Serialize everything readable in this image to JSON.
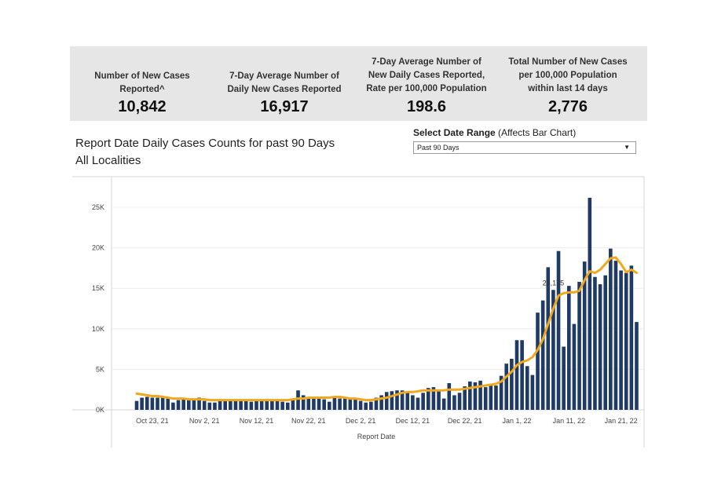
{
  "kpis": [
    {
      "label_lines": [
        "Number of New Cases",
        "Reported^"
      ],
      "value": "10,842"
    },
    {
      "label_lines": [
        "7-Day Average Number of",
        "Daily New Cases Reported"
      ],
      "value": "16,917"
    },
    {
      "label_lines": [
        "7-Day Average Number of",
        "New Daily Cases Reported,",
        "Rate per 100,000 Population"
      ],
      "value": "198.6"
    },
    {
      "label_lines": [
        "Total Number of New Cases",
        "per 100,000 Population",
        "within last 14 days"
      ],
      "value": "2,776"
    }
  ],
  "chart_header": {
    "title_line1": "Report Date Daily Cases Counts for past 90 Days",
    "title_line2": "All Localities"
  },
  "date_range": {
    "label_bold": "Select Date Range",
    "label_rest": " (Affects Bar Chart)",
    "selected": "Past 90 Days"
  },
  "colors": {
    "bar": "#1f3a64",
    "line": "#f0a81e",
    "grid": "#ececec",
    "panel_bg": "#e6e6e6"
  },
  "chart_data": {
    "type": "bar",
    "xlabel": "Report Date",
    "ylabel": "",
    "ylim": [
      0,
      27000
    ],
    "y_ticks": [
      0,
      5000,
      10000,
      15000,
      20000,
      25000
    ],
    "y_tick_labels": [
      "0K",
      "5K",
      "10K",
      "15K",
      "20K",
      "25K"
    ],
    "x_tick_labels": [
      "Oct 23, 21",
      "Nov 2, 21",
      "Nov 12, 21",
      "Nov 22, 21",
      "Dec 2, 21",
      "Dec 12, 21",
      "Dec 22, 21",
      "Jan 1, 22",
      "Jan 11, 22",
      "Jan 21, 22"
    ],
    "annotation": {
      "label": "26,175",
      "index": 80
    },
    "series": [
      {
        "type": "bar",
        "values": [
          1100,
          1500,
          1600,
          1500,
          1500,
          1500,
          1400,
          900,
          1200,
          1500,
          1300,
          1400,
          1500,
          1100,
          900,
          900,
          1200,
          1200,
          1200,
          1100,
          1200,
          1100,
          1000,
          1200,
          1300,
          1200,
          1300,
          1100,
          1000,
          900,
          1400,
          2400,
          1800,
          1500,
          1400,
          1500,
          1300,
          1000,
          1600,
          1400,
          1500,
          1400,
          1300,
          1100,
          900,
          1000,
          1500,
          1800,
          2200,
          2300,
          2400,
          2400,
          2100,
          1800,
          1500,
          2100,
          2700,
          2800,
          2400,
          1400,
          3300,
          1800,
          2100,
          2900,
          3500,
          3400,
          3600,
          2800,
          3100,
          3000,
          4200,
          5700,
          6300,
          8600,
          8600,
          5400,
          4300,
          12000,
          13500,
          17600,
          14800,
          19600,
          7800,
          15300,
          10600,
          15800,
          18300,
          26175,
          16400,
          15500,
          16600,
          19900,
          18400,
          17200,
          16900,
          17800,
          10842
        ]
      },
      {
        "type": "line",
        "values": [
          2000,
          1900,
          1800,
          1700,
          1700,
          1600,
          1500,
          1400,
          1400,
          1400,
          1300,
          1300,
          1300,
          1300,
          1200,
          1200,
          1200,
          1200,
          1200,
          1200,
          1200,
          1200,
          1200,
          1200,
          1200,
          1200,
          1200,
          1200,
          1200,
          1200,
          1300,
          1400,
          1400,
          1500,
          1500,
          1500,
          1500,
          1500,
          1600,
          1600,
          1500,
          1400,
          1400,
          1300,
          1200,
          1200,
          1300,
          1400,
          1500,
          1700,
          1900,
          2100,
          2200,
          2200,
          2300,
          2400,
          2400,
          2400,
          2400,
          2400,
          2500,
          2500,
          2500,
          2600,
          2700,
          2800,
          2900,
          3000,
          3100,
          3200,
          3500,
          4100,
          4700,
          5500,
          5900,
          6100,
          6500,
          7400,
          8700,
          10600,
          12500,
          14100,
          14400,
          14500,
          14500,
          14700,
          16000,
          17100,
          16900,
          17300,
          18000,
          18700,
          18800,
          18000,
          17000,
          17300,
          16917
        ]
      }
    ]
  }
}
